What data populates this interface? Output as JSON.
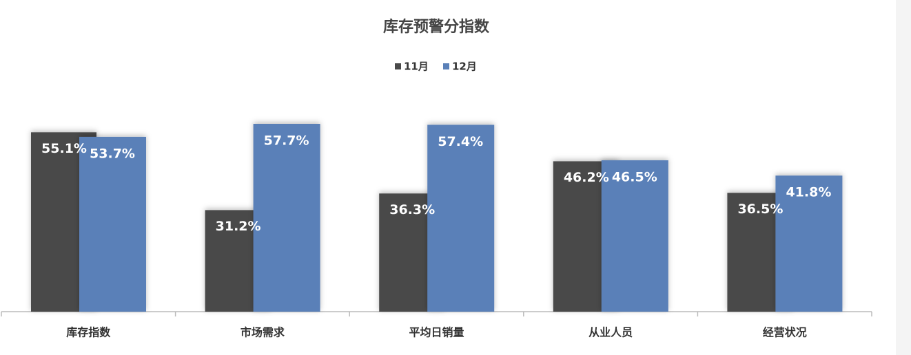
{
  "chart_data": {
    "type": "bar",
    "title": "库存预警分指数",
    "categories": [
      "库存指数",
      "市场需求",
      "平均日销量",
      "从业人员",
      "经营状况"
    ],
    "series": [
      {
        "name": "11月",
        "color": "#4a4a4a",
        "values": [
          55.1,
          31.2,
          36.3,
          46.2,
          36.5
        ],
        "value_labels": [
          "55.1%",
          "31.2%",
          "36.3%",
          "46.2%",
          "36.5%"
        ]
      },
      {
        "name": "12月",
        "color": "#5a80b8",
        "values": [
          53.7,
          57.7,
          57.4,
          46.5,
          41.8
        ],
        "value_labels": [
          "53.7%",
          "57.7%",
          "57.4%",
          "46.5%",
          "41.8%"
        ]
      }
    ],
    "legend": "top"
  }
}
